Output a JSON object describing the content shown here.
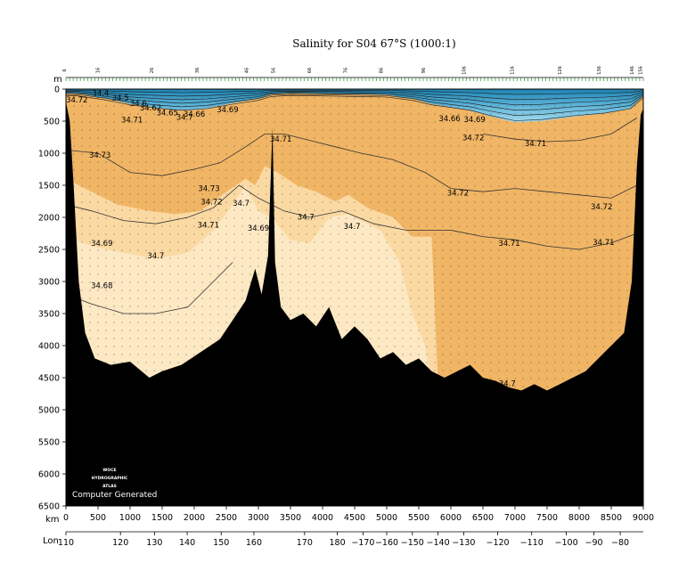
{
  "chart_data": {
    "type": "heatmap",
    "title": "Salinity for S04 67°S (1000:1)",
    "y_unit": "m",
    "x_unit": "km",
    "lon_unit": "Lon",
    "ylim": [
      0,
      6500
    ],
    "xlim": [
      0,
      9000
    ],
    "y_ticks": [
      0,
      500,
      1000,
      1500,
      2000,
      2500,
      3000,
      3500,
      4000,
      4500,
      5000,
      5500,
      6000,
      6500
    ],
    "x_ticks": [
      0,
      500,
      1000,
      1500,
      2000,
      2500,
      3000,
      3500,
      4000,
      4500,
      5000,
      5500,
      6000,
      6500,
      7000,
      7500,
      8000,
      8500,
      9000
    ],
    "lon_ticks": [
      {
        "label": "110",
        "km": 0
      },
      {
        "label": "120",
        "km": 850
      },
      {
        "label": "130",
        "km": 1380
      },
      {
        "label": "140",
        "km": 1890
      },
      {
        "label": "150",
        "km": 2420
      },
      {
        "label": "160",
        "km": 2930
      },
      {
        "label": "170",
        "km": 3720
      },
      {
        "label": "180",
        "km": 4230
      },
      {
        "label": "−170",
        "km": 4630
      },
      {
        "label": "−160",
        "km": 5000
      },
      {
        "label": "−150",
        "km": 5400
      },
      {
        "label": "−140",
        "km": 5800
      },
      {
        "label": "−130",
        "km": 6200
      },
      {
        "label": "−120",
        "km": 6730
      },
      {
        "label": "−110",
        "km": 7260
      },
      {
        "label": "−100",
        "km": 7800
      },
      {
        "label": "−90",
        "km": 8230
      },
      {
        "label": "−80",
        "km": 8640
      }
    ],
    "station_labels": [
      {
        "label": "6",
        "km": 0
      },
      {
        "label": "16",
        "km": 520
      },
      {
        "label": "26",
        "km": 1360
      },
      {
        "label": "36",
        "km": 2070
      },
      {
        "label": "46",
        "km": 2840
      },
      {
        "label": "56",
        "km": 3260
      },
      {
        "label": "66",
        "km": 3820
      },
      {
        "label": "76",
        "km": 4380
      },
      {
        "label": "86",
        "km": 4940
      },
      {
        "label": "96",
        "km": 5600
      },
      {
        "label": "106",
        "km": 6230
      },
      {
        "label": "116",
        "km": 6980
      },
      {
        "label": "126",
        "km": 7720
      },
      {
        "label": "136",
        "km": 8330
      },
      {
        "label": "146",
        "km": 8850
      },
      {
        "label": "156",
        "km": 8980
      }
    ],
    "contour_labels": [
      {
        "text": "34.72",
        "km": 170,
        "depth": 170
      },
      {
        "text": "34.4",
        "km": 540,
        "depth": 60
      },
      {
        "text": "34.5",
        "km": 850,
        "depth": 140
      },
      {
        "text": "34.6",
        "km": 1130,
        "depth": 220
      },
      {
        "text": "34.62",
        "km": 1320,
        "depth": 290
      },
      {
        "text": "34.65",
        "km": 1580,
        "depth": 370
      },
      {
        "text": "34.66",
        "km": 2000,
        "depth": 390
      },
      {
        "text": "34.7",
        "km": 1850,
        "depth": 440
      },
      {
        "text": "34.71",
        "km": 1030,
        "depth": 480
      },
      {
        "text": "34.69",
        "km": 2520,
        "depth": 320
      },
      {
        "text": "34.71",
        "km": 3350,
        "depth": 780
      },
      {
        "text": "34.73",
        "km": 530,
        "depth": 1030
      },
      {
        "text": "34.73",
        "km": 2230,
        "depth": 1550
      },
      {
        "text": "34.72",
        "km": 2270,
        "depth": 1760
      },
      {
        "text": "34.7",
        "km": 2730,
        "depth": 1780
      },
      {
        "text": "34.71",
        "km": 2220,
        "depth": 2120
      },
      {
        "text": "34.69",
        "km": 3000,
        "depth": 2170
      },
      {
        "text": "34.7",
        "km": 3740,
        "depth": 1990
      },
      {
        "text": "34.7",
        "km": 1400,
        "depth": 2600
      },
      {
        "text": "34.69",
        "km": 560,
        "depth": 2400
      },
      {
        "text": "34.68",
        "km": 560,
        "depth": 3060
      },
      {
        "text": "34.7",
        "km": 4460,
        "depth": 2140
      },
      {
        "text": "34.72",
        "km": 6110,
        "depth": 1620
      },
      {
        "text": "34.71",
        "km": 6910,
        "depth": 2400
      },
      {
        "text": "34.69",
        "km": 6370,
        "depth": 470
      },
      {
        "text": "34.72",
        "km": 6350,
        "depth": 760
      },
      {
        "text": "34.71",
        "km": 7320,
        "depth": 850
      },
      {
        "text": "34.72",
        "km": 8350,
        "depth": 1830
      },
      {
        "text": "34.71",
        "km": 8380,
        "depth": 2390
      },
      {
        "text": "34.7",
        "km": 6880,
        "depth": 4590
      },
      {
        "text": "34.66",
        "km": 5980,
        "depth": 460
      }
    ],
    "colors": {
      "above_34_72": "#f0b565",
      "band_34_7_34_72": "#fad9a3",
      "below_34_7": "#fde8c4",
      "surface_low": "#1c84b5",
      "surface_mid": "#5eb4d8",
      "surface_high": "#a6dcef",
      "bathymetry": "#000000"
    },
    "logo_lines": [
      "WOCE",
      "HYDROGRAPHIC",
      "ATLAS"
    ],
    "credit": "Computer Generated"
  }
}
